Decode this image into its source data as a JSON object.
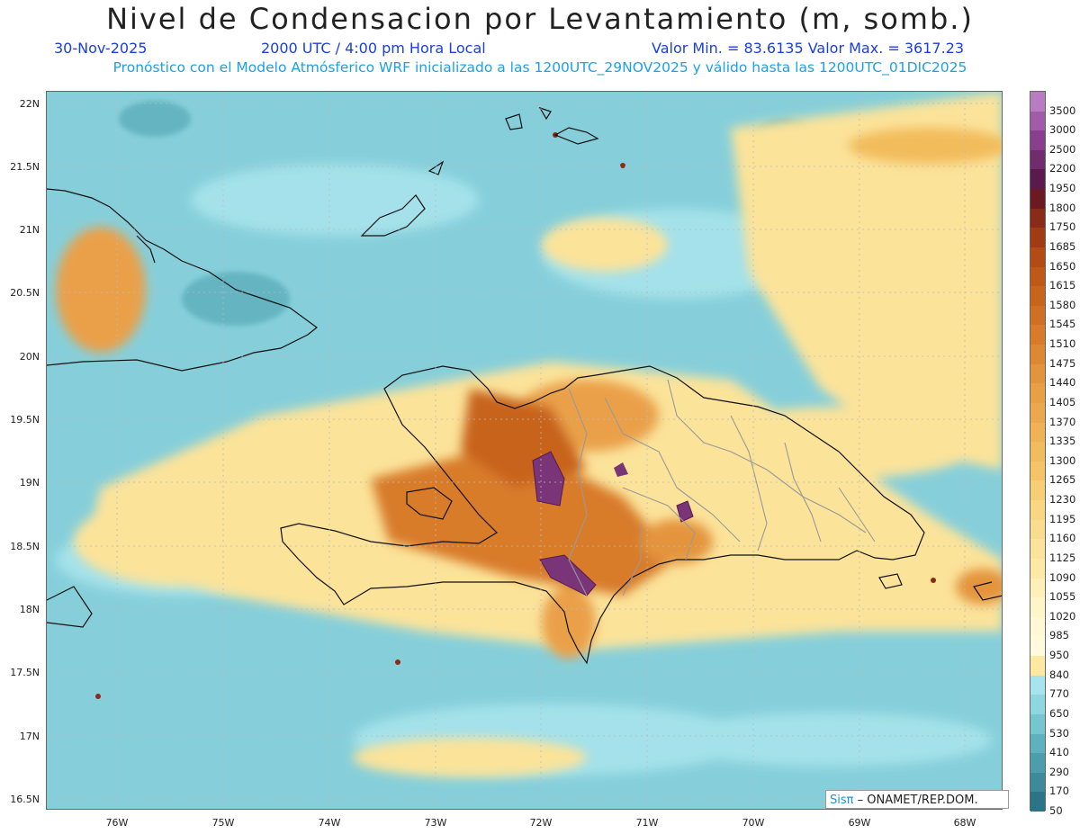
{
  "header": {
    "title": "Nivel de Condensacion por Levantamiento (m, somb.)",
    "date": "30-Nov-2025",
    "time": "2000 UTC / 4:00 pm Hora Local",
    "minmax": "Valor Min. = 83.6135  Valor Max. = 3617.23",
    "subtitle": "Pronóstico con el Modelo Atmósferico WRF inicializado a las 1200UTC_29NOV2025 y válido hasta las  1200UTC_01DIC2025"
  },
  "axes": {
    "lat_labels": [
      "22N",
      "21.5N",
      "21N",
      "20.5N",
      "20N",
      "19.5N",
      "19N",
      "18.5N",
      "18N",
      "17.5N",
      "17N",
      "16.5N"
    ],
    "lon_labels": [
      "76W",
      "75W",
      "74W",
      "73W",
      "72W",
      "71W",
      "70W",
      "69W",
      "68W"
    ]
  },
  "colorbar": {
    "levels": [
      "3500",
      "3000",
      "2500",
      "2200",
      "1950",
      "1800",
      "1750",
      "1685",
      "1650",
      "1615",
      "1580",
      "1545",
      "1510",
      "1475",
      "1440",
      "1405",
      "1370",
      "1335",
      "1300",
      "1265",
      "1230",
      "1195",
      "1160",
      "1125",
      "1090",
      "1055",
      "1020",
      "985",
      "950",
      "840",
      "770",
      "650",
      "530",
      "410",
      "290",
      "170",
      "50"
    ],
    "colors": [
      "#b87cc0",
      "#a05ca8",
      "#8a3f8e",
      "#702c6c",
      "#5a1a4c",
      "#6a1a20",
      "#8a2a18",
      "#a23a14",
      "#b44a14",
      "#c05818",
      "#c8641c",
      "#d07024",
      "#d87c2c",
      "#de8834",
      "#e4943c",
      "#e8a044",
      "#eca84c",
      "#f0b254",
      "#f2bc5c",
      "#f4c466",
      "#f6ce74",
      "#f8d682",
      "#fadc8e",
      "#fce29a",
      "#fde8a6",
      "#fef0b6",
      "#fef6c8",
      "#fff8d4",
      "#fffadc",
      "#ffe9a0",
      "#a6e4ee",
      "#8ed6e0",
      "#76c6d2",
      "#5eb2c0",
      "#4c9eae",
      "#3c8a9c",
      "#2c748a"
    ]
  },
  "credit": {
    "logo": "Sisπ",
    "text": "– ONAMET/REP.DOM."
  }
}
